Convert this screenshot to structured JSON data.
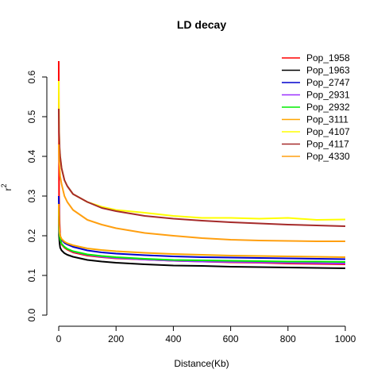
{
  "chart_data": {
    "type": "line",
    "title": "LD decay",
    "xlabel": "Distance(Kb)",
    "ylabel_base": "r",
    "ylabel_sup": "2",
    "xlim": [
      0,
      1000
    ],
    "ylim": [
      0,
      0.65
    ],
    "x_ticks": [
      "0",
      "200",
      "400",
      "600",
      "800",
      "1000"
    ],
    "y_ticks": [
      "0.0",
      "0.1",
      "0.2",
      "0.3",
      "0.4",
      "0.5",
      "0.6"
    ],
    "x_tick_values": [
      0,
      200,
      400,
      600,
      800,
      1000
    ],
    "y_tick_values": [
      0,
      0.1,
      0.2,
      0.3,
      0.4,
      0.5,
      0.6
    ],
    "grid": false,
    "legend_position": "top-right",
    "series": [
      {
        "name": "Pop_1958",
        "color": "#ff0000",
        "x": [
          0,
          1,
          3,
          5,
          10,
          20,
          30,
          50,
          100,
          150,
          200,
          300,
          400,
          500,
          600,
          700,
          800,
          900,
          1000
        ],
        "y": [
          0.64,
          0.3,
          0.23,
          0.2,
          0.178,
          0.17,
          0.165,
          0.158,
          0.15,
          0.146,
          0.143,
          0.14,
          0.137,
          0.135,
          0.133,
          0.132,
          0.13,
          0.129,
          0.128
        ]
      },
      {
        "name": "Pop_1963",
        "color": "#000000",
        "x": [
          0,
          1,
          3,
          5,
          10,
          20,
          30,
          50,
          100,
          150,
          200,
          300,
          400,
          500,
          600,
          700,
          800,
          900,
          1000
        ],
        "y": [
          0.25,
          0.2,
          0.18,
          0.17,
          0.163,
          0.156,
          0.152,
          0.147,
          0.139,
          0.135,
          0.132,
          0.128,
          0.125,
          0.124,
          0.122,
          0.121,
          0.12,
          0.119,
          0.118
        ]
      },
      {
        "name": "Pop_2747",
        "color": "#0000cd",
        "x": [
          0,
          1,
          3,
          5,
          10,
          20,
          30,
          50,
          100,
          150,
          200,
          300,
          400,
          500,
          600,
          700,
          800,
          900,
          1000
        ],
        "y": [
          0.3,
          0.24,
          0.21,
          0.2,
          0.19,
          0.182,
          0.178,
          0.172,
          0.163,
          0.158,
          0.155,
          0.151,
          0.148,
          0.146,
          0.145,
          0.144,
          0.143,
          0.142,
          0.141
        ]
      },
      {
        "name": "Pop_2931",
        "color": "#9b30ff",
        "x": [
          0,
          1,
          3,
          5,
          10,
          20,
          30,
          50,
          100,
          150,
          200,
          300,
          400,
          500,
          600,
          700,
          800,
          900,
          1000
        ],
        "y": [
          0.28,
          0.22,
          0.2,
          0.19,
          0.18,
          0.172,
          0.167,
          0.16,
          0.152,
          0.147,
          0.144,
          0.14,
          0.137,
          0.135,
          0.134,
          0.133,
          0.132,
          0.131,
          0.13
        ]
      },
      {
        "name": "Pop_2932",
        "color": "#00ee00",
        "x": [
          0,
          1,
          3,
          5,
          10,
          20,
          30,
          50,
          100,
          150,
          200,
          300,
          400,
          500,
          600,
          700,
          800,
          900,
          1000
        ],
        "y": [
          0.27,
          0.22,
          0.2,
          0.19,
          0.18,
          0.172,
          0.167,
          0.161,
          0.153,
          0.149,
          0.146,
          0.142,
          0.139,
          0.138,
          0.137,
          0.136,
          0.135,
          0.135,
          0.134
        ]
      },
      {
        "name": "Pop_3111",
        "color": "#ffa500",
        "x": [
          0,
          1,
          3,
          5,
          10,
          20,
          30,
          50,
          100,
          150,
          200,
          300,
          400,
          500,
          600,
          700,
          800,
          900,
          1000
        ],
        "y": [
          0.28,
          0.23,
          0.21,
          0.2,
          0.192,
          0.185,
          0.181,
          0.176,
          0.168,
          0.164,
          0.161,
          0.157,
          0.154,
          0.152,
          0.15,
          0.149,
          0.148,
          0.147,
          0.146
        ]
      },
      {
        "name": "Pop_4107",
        "color": "#ffff00",
        "x": [
          0,
          1,
          3,
          5,
          10,
          20,
          30,
          50,
          100,
          150,
          200,
          300,
          400,
          500,
          600,
          700,
          800,
          900,
          1000
        ],
        "y": [
          0.59,
          0.47,
          0.42,
          0.4,
          0.37,
          0.34,
          0.325,
          0.305,
          0.285,
          0.273,
          0.265,
          0.258,
          0.25,
          0.245,
          0.245,
          0.243,
          0.245,
          0.24,
          0.241
        ]
      },
      {
        "name": "Pop_4117",
        "color": "#a52a2a",
        "x": [
          0,
          1,
          3,
          5,
          10,
          20,
          30,
          50,
          100,
          150,
          200,
          300,
          400,
          500,
          600,
          700,
          800,
          900,
          1000
        ],
        "y": [
          0.52,
          0.46,
          0.42,
          0.4,
          0.37,
          0.34,
          0.325,
          0.305,
          0.285,
          0.27,
          0.262,
          0.25,
          0.243,
          0.238,
          0.234,
          0.231,
          0.228,
          0.226,
          0.224
        ]
      },
      {
        "name": "Pop_4330",
        "color": "#ff9f10",
        "x": [
          0,
          1,
          3,
          5,
          10,
          20,
          30,
          50,
          100,
          150,
          200,
          300,
          400,
          500,
          600,
          700,
          800,
          900,
          1000
        ],
        "y": [
          0.43,
          0.39,
          0.37,
          0.35,
          0.33,
          0.3,
          0.285,
          0.265,
          0.24,
          0.228,
          0.219,
          0.207,
          0.2,
          0.194,
          0.19,
          0.188,
          0.187,
          0.186,
          0.186
        ]
      }
    ]
  }
}
